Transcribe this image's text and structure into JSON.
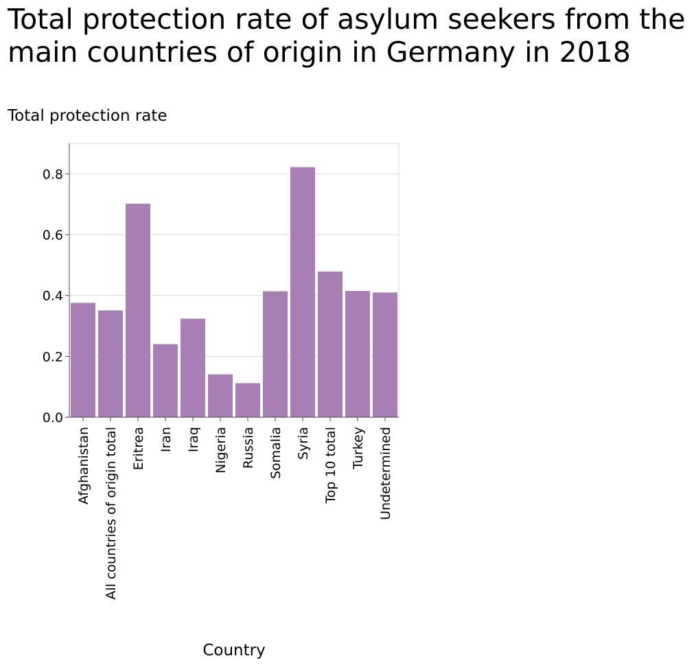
{
  "chart_data": {
    "type": "bar",
    "title": "Total protection rate of asylum seekers from the main countries of origin in Germany in 2018",
    "ylabel": "Total protection rate",
    "xlabel": "Country",
    "categories": [
      "Afghanistan",
      "All countries of origin total",
      "Eritrea",
      "Iran",
      "Iraq",
      "Nigeria",
      "Russia",
      "Somalia",
      "Syria",
      "Top 10 total",
      "Turkey",
      "Undetermined"
    ],
    "values": [
      0.376,
      0.351,
      0.702,
      0.24,
      0.324,
      0.141,
      0.112,
      0.414,
      0.822,
      0.479,
      0.415,
      0.41
    ],
    "ylim": [
      0,
      0.9
    ],
    "yticks": [
      "0.0",
      "0.2",
      "0.4",
      "0.6",
      "0.8"
    ],
    "grid": true,
    "bar_color": "#a87fb4"
  }
}
